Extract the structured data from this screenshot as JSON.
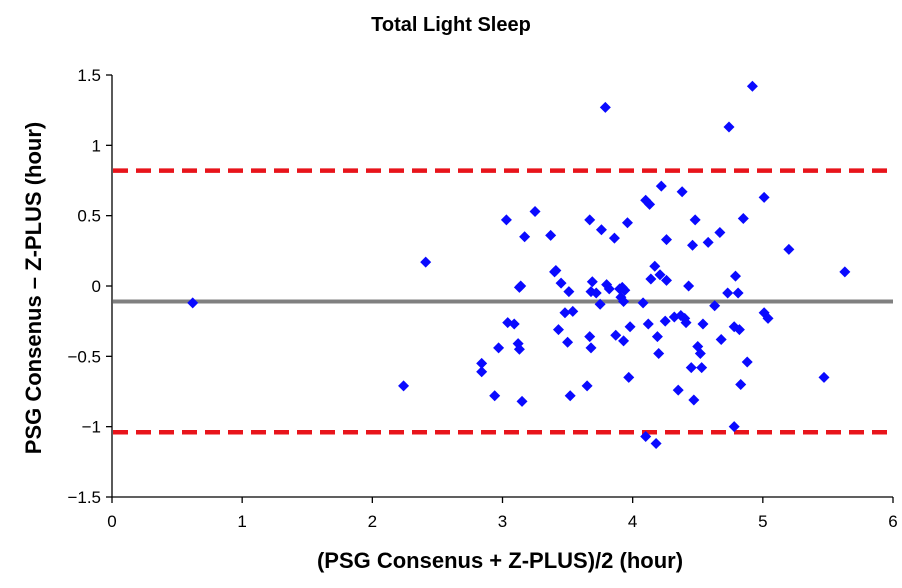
{
  "chart_data": {
    "type": "scatter",
    "title": "Total Light Sleep",
    "xlabel": "(PSG Consenus + Z-PLUS)/2 (hour)",
    "ylabel": "PSG Consenus – Z-PLUS (hour)",
    "xlim": [
      0,
      6
    ],
    "ylim": [
      -1.5,
      1.5
    ],
    "xticks": [
      0,
      1,
      2,
      3,
      4,
      5,
      6
    ],
    "xtick_labels": [
      "0",
      "1",
      "2",
      "3",
      "4",
      "5",
      "6"
    ],
    "yticks": [
      1.5,
      1,
      0.5,
      0,
      -0.5,
      -1,
      -1.5
    ],
    "ytick_labels": [
      "1.5",
      "1",
      "0.5",
      "0",
      "−0.5",
      "−1",
      "−1.5"
    ],
    "grid": false,
    "reference_lines": [
      {
        "y": -0.11,
        "style": "solid",
        "color": "#808080"
      },
      {
        "y": 0.82,
        "style": "dashed",
        "color": "#e8141b"
      },
      {
        "y": -1.04,
        "style": "dashed",
        "color": "#e8141b"
      }
    ],
    "marker": "diamond",
    "marker_color": "#0a0aff",
    "points": [
      {
        "x": 0.62,
        "y": -0.12
      },
      {
        "x": 2.24,
        "y": -0.71
      },
      {
        "x": 2.41,
        "y": 0.17
      },
      {
        "x": 2.84,
        "y": -0.55
      },
      {
        "x": 2.84,
        "y": -0.61
      },
      {
        "x": 2.94,
        "y": -0.78
      },
      {
        "x": 2.97,
        "y": -0.44
      },
      {
        "x": 3.03,
        "y": 0.47
      },
      {
        "x": 3.04,
        "y": -0.26
      },
      {
        "x": 3.09,
        "y": -0.27
      },
      {
        "x": 3.12,
        "y": -0.41
      },
      {
        "x": 3.13,
        "y": -0.45
      },
      {
        "x": 3.13,
        "y": -0.01
      },
      {
        "x": 3.14,
        "y": 0.0
      },
      {
        "x": 3.15,
        "y": -0.82
      },
      {
        "x": 3.17,
        "y": 0.35
      },
      {
        "x": 3.25,
        "y": 0.53
      },
      {
        "x": 3.37,
        "y": 0.36
      },
      {
        "x": 3.4,
        "y": 0.1
      },
      {
        "x": 3.41,
        "y": 0.11
      },
      {
        "x": 3.43,
        "y": -0.31
      },
      {
        "x": 3.45,
        "y": 0.02
      },
      {
        "x": 3.48,
        "y": -0.19
      },
      {
        "x": 3.5,
        "y": -0.4
      },
      {
        "x": 3.51,
        "y": -0.04
      },
      {
        "x": 3.52,
        "y": -0.78
      },
      {
        "x": 3.54,
        "y": -0.18
      },
      {
        "x": 3.65,
        "y": -0.71
      },
      {
        "x": 3.67,
        "y": 0.47
      },
      {
        "x": 3.67,
        "y": -0.36
      },
      {
        "x": 3.68,
        "y": -0.44
      },
      {
        "x": 3.68,
        "y": -0.04
      },
      {
        "x": 3.69,
        "y": 0.03
      },
      {
        "x": 3.72,
        "y": -0.05
      },
      {
        "x": 3.75,
        "y": -0.13
      },
      {
        "x": 3.76,
        "y": 0.4
      },
      {
        "x": 3.79,
        "y": 1.27
      },
      {
        "x": 3.8,
        "y": 0.01
      },
      {
        "x": 3.82,
        "y": -0.02
      },
      {
        "x": 3.86,
        "y": 0.34
      },
      {
        "x": 3.87,
        "y": -0.35
      },
      {
        "x": 3.9,
        "y": -0.02
      },
      {
        "x": 3.91,
        "y": -0.08
      },
      {
        "x": 3.92,
        "y": -0.01
      },
      {
        "x": 3.93,
        "y": -0.11
      },
      {
        "x": 3.93,
        "y": -0.39
      },
      {
        "x": 3.94,
        "y": -0.03
      },
      {
        "x": 3.96,
        "y": 0.45
      },
      {
        "x": 3.97,
        "y": -0.65
      },
      {
        "x": 3.98,
        "y": -0.29
      },
      {
        "x": 4.08,
        "y": -0.12
      },
      {
        "x": 4.1,
        "y": 0.61
      },
      {
        "x": 4.1,
        "y": -1.07
      },
      {
        "x": 4.12,
        "y": -0.27
      },
      {
        "x": 4.13,
        "y": 0.58
      },
      {
        "x": 4.14,
        "y": 0.05
      },
      {
        "x": 4.17,
        "y": 0.14
      },
      {
        "x": 4.18,
        "y": -1.12
      },
      {
        "x": 4.19,
        "y": -0.36
      },
      {
        "x": 4.2,
        "y": -0.48
      },
      {
        "x": 4.21,
        "y": 0.08
      },
      {
        "x": 4.22,
        "y": 0.71
      },
      {
        "x": 4.25,
        "y": -0.25
      },
      {
        "x": 4.26,
        "y": 0.33
      },
      {
        "x": 4.26,
        "y": 0.04
      },
      {
        "x": 4.32,
        "y": -0.22
      },
      {
        "x": 4.35,
        "y": -0.74
      },
      {
        "x": 4.37,
        "y": -0.21
      },
      {
        "x": 4.38,
        "y": 0.67
      },
      {
        "x": 4.4,
        "y": -0.23
      },
      {
        "x": 4.41,
        "y": -0.26
      },
      {
        "x": 4.43,
        "y": 0.0
      },
      {
        "x": 4.45,
        "y": -0.58
      },
      {
        "x": 4.46,
        "y": 0.29
      },
      {
        "x": 4.47,
        "y": -0.81
      },
      {
        "x": 4.48,
        "y": 0.47
      },
      {
        "x": 4.5,
        "y": -0.43
      },
      {
        "x": 4.52,
        "y": -0.48
      },
      {
        "x": 4.53,
        "y": -0.58
      },
      {
        "x": 4.54,
        "y": -0.27
      },
      {
        "x": 4.58,
        "y": 0.31
      },
      {
        "x": 4.63,
        "y": -0.14
      },
      {
        "x": 4.67,
        "y": 0.38
      },
      {
        "x": 4.68,
        "y": -0.38
      },
      {
        "x": 4.73,
        "y": -0.05
      },
      {
        "x": 4.74,
        "y": 1.13
      },
      {
        "x": 4.78,
        "y": -0.29
      },
      {
        "x": 4.78,
        "y": -1.0
      },
      {
        "x": 4.79,
        "y": 0.07
      },
      {
        "x": 4.81,
        "y": -0.05
      },
      {
        "x": 4.82,
        "y": -0.31
      },
      {
        "x": 4.83,
        "y": -0.7
      },
      {
        "x": 4.85,
        "y": 0.48
      },
      {
        "x": 4.88,
        "y": -0.54
      },
      {
        "x": 4.92,
        "y": 1.42
      },
      {
        "x": 5.01,
        "y": 0.63
      },
      {
        "x": 5.01,
        "y": -0.19
      },
      {
        "x": 5.04,
        "y": -0.23
      },
      {
        "x": 5.2,
        "y": 0.26
      },
      {
        "x": 5.47,
        "y": -0.65
      },
      {
        "x": 5.63,
        "y": 0.1
      }
    ]
  }
}
